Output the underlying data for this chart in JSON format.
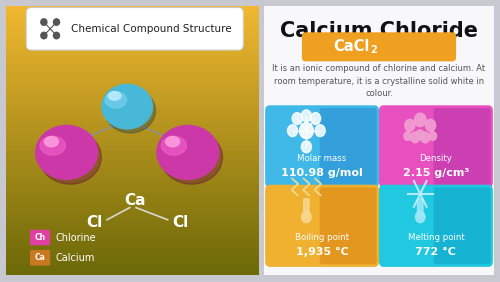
{
  "title_left": "Chemical Compound Structure",
  "title_right": "Calcium Chloride",
  "description": "It is an ionic compound of chlorine and calcium. At\nroom temperature, it is a crystalline solid white in\ncolour.",
  "legend": [
    {
      "label": "Chlorine",
      "color": "#e040a0"
    },
    {
      "label": "Calcium",
      "color": "#c87820"
    }
  ],
  "properties": [
    {
      "title": "Molar mass",
      "value": "110.98 g/mol",
      "color1": "#40b8e8",
      "color2": "#2888d0"
    },
    {
      "title": "Density",
      "value": "2.15 g/cm³",
      "color1": "#e850c0",
      "color2": "#b030a8"
    },
    {
      "title": "Boiling point",
      "value": "1,935 °C",
      "color1": "#f0b030",
      "color2": "#d88010"
    },
    {
      "title": "Melting point",
      "value": "772 °C",
      "color1": "#20c8e0",
      "color2": "#10a0c8"
    }
  ],
  "atom_ca_color": "#48b8d8",
  "atom_ca_highlight": "#90d8f0",
  "atom_cl_color": "#cc38a8",
  "atom_cl_highlight": "#f080d0",
  "bond_color": "#909090",
  "bg_outer": "#c8c8d0",
  "bg_left_top": "#f5b830",
  "bg_left_bottom": "#c07810",
  "bg_right": "#f8f8fa",
  "header_bg": "#ffffff"
}
